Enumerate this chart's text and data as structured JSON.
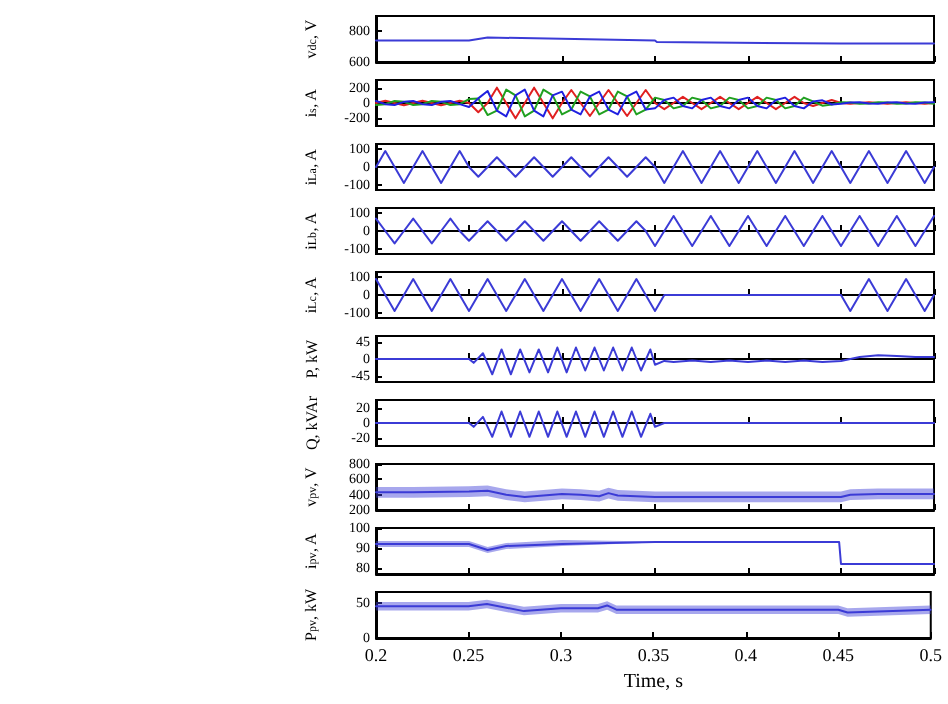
{
  "chart_data": [
    {
      "type": "line",
      "ylabel": "v$_{dc}$, V",
      "x": [
        0.2,
        0.25,
        0.26,
        0.35,
        0.351,
        0.45,
        0.5
      ],
      "series": [
        {
          "color": "#3b3bd6",
          "values": [
            740,
            740,
            760,
            740,
            730,
            720,
            720
          ]
        }
      ],
      "xlim": [
        0.2,
        0.5
      ],
      "xticks": [
        0.2,
        0.25,
        0.3,
        0.35,
        0.4,
        0.45,
        0.5
      ],
      "ylim": [
        600,
        900
      ],
      "yticks": [
        600,
        800
      ],
      "tick_labels": "y"
    },
    {
      "type": "line",
      "ylabel": "i$_{s}$, A",
      "x": [
        0.2,
        0.205,
        0.21,
        0.215,
        0.22,
        0.225,
        0.23,
        0.235,
        0.24,
        0.245,
        0.25,
        0.255,
        0.26,
        0.265,
        0.27,
        0.275,
        0.28,
        0.285,
        0.29,
        0.295,
        0.3,
        0.305,
        0.31,
        0.315,
        0.32,
        0.325,
        0.33,
        0.335,
        0.34,
        0.345,
        0.35,
        0.355,
        0.36,
        0.365,
        0.37,
        0.375,
        0.38,
        0.385,
        0.39,
        0.395,
        0.4,
        0.405,
        0.41,
        0.415,
        0.42,
        0.425,
        0.43,
        0.435,
        0.44,
        0.445,
        0.45,
        0.455,
        0.46,
        0.465,
        0.47,
        0.475,
        0.48,
        0.485,
        0.49,
        0.495,
        0.5
      ],
      "series": [
        {
          "color": "#e02020",
          "values": [
            0,
            30,
            0,
            -30,
            0,
            30,
            0,
            -30,
            0,
            30,
            0,
            -120,
            0,
            200,
            0,
            -200,
            0,
            200,
            0,
            -200,
            0,
            170,
            0,
            -170,
            0,
            170,
            0,
            -170,
            0,
            170,
            0,
            -80,
            0,
            80,
            0,
            -80,
            0,
            80,
            0,
            -80,
            0,
            80,
            0,
            -80,
            0,
            80,
            0,
            -40,
            0,
            40,
            0,
            -10,
            0,
            10,
            0,
            -10,
            0,
            10,
            0,
            -10,
            0
          ]
        },
        {
          "color": "#20a020",
          "values": [
            -26,
            -15,
            26,
            15,
            -26,
            -15,
            26,
            15,
            -26,
            -15,
            52,
            60,
            -157,
            -100,
            174,
            100,
            -174,
            -100,
            174,
            100,
            -148,
            -85,
            148,
            85,
            -148,
            -85,
            148,
            85,
            -148,
            -85,
            70,
            40,
            -70,
            -40,
            70,
            40,
            -70,
            -40,
            70,
            40,
            -70,
            -40,
            70,
            40,
            -70,
            -40,
            70,
            20,
            -35,
            -20,
            9,
            5,
            -9,
            -5,
            9,
            5,
            -9,
            -5,
            9,
            5,
            -9
          ]
        },
        {
          "color": "#2020e0",
          "values": [
            26,
            -15,
            -26,
            15,
            26,
            -15,
            -26,
            15,
            26,
            -15,
            -52,
            60,
            157,
            -100,
            -174,
            100,
            174,
            -100,
            -174,
            100,
            148,
            -85,
            -148,
            85,
            148,
            -85,
            -148,
            85,
            148,
            -85,
            -70,
            40,
            70,
            -40,
            -70,
            40,
            70,
            -40,
            -70,
            40,
            70,
            -40,
            -70,
            40,
            70,
            -40,
            -70,
            20,
            35,
            -20,
            -9,
            5,
            9,
            -5,
            -9,
            5,
            9,
            -5,
            -9,
            5,
            9
          ]
        }
      ],
      "xlim": [
        0.2,
        0.5
      ],
      "xticks": [
        0.2,
        0.25,
        0.3,
        0.35,
        0.4,
        0.45,
        0.5
      ],
      "ylim": [
        -300,
        300
      ],
      "yticks": [
        -200,
        0,
        200
      ],
      "tick_labels": "y"
    },
    {
      "type": "line",
      "ylabel": "i$_{La}$, A",
      "x": [
        0.2,
        0.205,
        0.21,
        0.215,
        0.22,
        0.225,
        0.23,
        0.235,
        0.24,
        0.245,
        0.25,
        0.255,
        0.26,
        0.265,
        0.27,
        0.275,
        0.28,
        0.285,
        0.29,
        0.295,
        0.3,
        0.305,
        0.31,
        0.315,
        0.32,
        0.325,
        0.33,
        0.335,
        0.34,
        0.345,
        0.35,
        0.355,
        0.36,
        0.365,
        0.37,
        0.375,
        0.38,
        0.385,
        0.39,
        0.395,
        0.4,
        0.405,
        0.41,
        0.415,
        0.42,
        0.425,
        0.43,
        0.435,
        0.44,
        0.445,
        0.45,
        0.455,
        0.46,
        0.465,
        0.47,
        0.475,
        0.48,
        0.485,
        0.49,
        0.495,
        0.5
      ],
      "series": [
        {
          "color": "#3b3bd6",
          "values": [
            0,
            90,
            0,
            -90,
            0,
            90,
            0,
            -90,
            0,
            90,
            0,
            -55,
            0,
            55,
            0,
            -55,
            0,
            55,
            0,
            -55,
            0,
            55,
            0,
            -55,
            0,
            55,
            0,
            -55,
            0,
            55,
            0,
            -90,
            0,
            90,
            0,
            -90,
            0,
            90,
            0,
            -90,
            0,
            90,
            0,
            -90,
            0,
            90,
            0,
            -90,
            0,
            90,
            0,
            -90,
            0,
            90,
            0,
            -90,
            0,
            90,
            0,
            -90,
            0
          ]
        }
      ],
      "xlim": [
        0.2,
        0.5
      ],
      "xticks": [
        0.2,
        0.25,
        0.3,
        0.35,
        0.4,
        0.45,
        0.5
      ],
      "ylim": [
        -130,
        130
      ],
      "yticks": [
        -100,
        0,
        100
      ],
      "tick_labels": "y"
    },
    {
      "type": "line",
      "ylabel": "i$_{Lb}$, A",
      "x": [
        0.2,
        0.205,
        0.21,
        0.215,
        0.22,
        0.225,
        0.23,
        0.235,
        0.24,
        0.245,
        0.25,
        0.255,
        0.26,
        0.265,
        0.27,
        0.275,
        0.28,
        0.285,
        0.29,
        0.295,
        0.3,
        0.305,
        0.31,
        0.315,
        0.32,
        0.325,
        0.33,
        0.335,
        0.34,
        0.345,
        0.35,
        0.355,
        0.36,
        0.365,
        0.37,
        0.375,
        0.38,
        0.385,
        0.39,
        0.395,
        0.4,
        0.405,
        0.41,
        0.415,
        0.42,
        0.425,
        0.43,
        0.435,
        0.44,
        0.445,
        0.45,
        0.455,
        0.46,
        0.465,
        0.47,
        0.475,
        0.48,
        0.485,
        0.49,
        0.495,
        0.5
      ],
      "series": [
        {
          "color": "#3b3bd6",
          "values": [
            70,
            0,
            -70,
            0,
            70,
            0,
            -70,
            0,
            70,
            0,
            -55,
            0,
            55,
            0,
            -55,
            0,
            55,
            0,
            -55,
            0,
            55,
            0,
            -55,
            0,
            55,
            0,
            -55,
            0,
            55,
            0,
            -85,
            0,
            85,
            0,
            -85,
            0,
            85,
            0,
            -85,
            0,
            85,
            0,
            -85,
            0,
            85,
            0,
            -85,
            0,
            85,
            0,
            -85,
            0,
            85,
            0,
            -85,
            0,
            85,
            0,
            -85,
            0,
            85
          ]
        }
      ],
      "xlim": [
        0.2,
        0.5
      ],
      "xticks": [
        0.2,
        0.25,
        0.3,
        0.35,
        0.4,
        0.45,
        0.5
      ],
      "ylim": [
        -130,
        130
      ],
      "yticks": [
        -100,
        0,
        100
      ],
      "tick_labels": "y"
    },
    {
      "type": "line",
      "ylabel": "i$_{Lc}$, A",
      "x": [
        0.2,
        0.205,
        0.21,
        0.215,
        0.22,
        0.225,
        0.23,
        0.235,
        0.24,
        0.245,
        0.25,
        0.255,
        0.26,
        0.265,
        0.27,
        0.275,
        0.28,
        0.285,
        0.29,
        0.295,
        0.3,
        0.305,
        0.31,
        0.315,
        0.32,
        0.325,
        0.33,
        0.335,
        0.34,
        0.345,
        0.35,
        0.355,
        0.36,
        0.365,
        0.37,
        0.375,
        0.38,
        0.385,
        0.39,
        0.395,
        0.4,
        0.405,
        0.41,
        0.415,
        0.42,
        0.425,
        0.43,
        0.435,
        0.44,
        0.445,
        0.45,
        0.455,
        0.46,
        0.465,
        0.47,
        0.475,
        0.48,
        0.485,
        0.49,
        0.495,
        0.5
      ],
      "series": [
        {
          "color": "#3b3bd6",
          "values": [
            90,
            0,
            -90,
            0,
            90,
            0,
            -90,
            0,
            90,
            0,
            -90,
            0,
            90,
            0,
            -90,
            0,
            90,
            0,
            -90,
            0,
            90,
            0,
            -90,
            0,
            90,
            0,
            -90,
            0,
            90,
            0,
            -90,
            0,
            0,
            0,
            0,
            0,
            0,
            0,
            0,
            0,
            0,
            0,
            0,
            0,
            0,
            0,
            0,
            0,
            0,
            0,
            0,
            -90,
            0,
            90,
            0,
            -90,
            0,
            90,
            0,
            -90,
            0
          ]
        }
      ],
      "xlim": [
        0.2,
        0.5
      ],
      "xticks": [
        0.2,
        0.25,
        0.3,
        0.35,
        0.4,
        0.45,
        0.5
      ],
      "ylim": [
        -130,
        130
      ],
      "yticks": [
        -100,
        0,
        100
      ],
      "tick_labels": "y"
    },
    {
      "type": "line",
      "ylabel": "P, kW",
      "x": [
        0.2,
        0.25,
        0.2525,
        0.2575,
        0.2625,
        0.2675,
        0.2725,
        0.2775,
        0.2825,
        0.2875,
        0.2925,
        0.2975,
        0.3025,
        0.3075,
        0.3125,
        0.3175,
        0.3225,
        0.3275,
        0.3325,
        0.3375,
        0.3425,
        0.3475,
        0.35,
        0.355,
        0.36,
        0.37,
        0.38,
        0.39,
        0.4,
        0.41,
        0.42,
        0.43,
        0.44,
        0.45,
        0.46,
        0.47,
        0.48,
        0.49,
        0.5
      ],
      "series": [
        {
          "color": "#3b3bd6",
          "values": [
            0,
            0,
            -10,
            15,
            -40,
            25,
            -40,
            25,
            -35,
            25,
            -35,
            30,
            -35,
            30,
            -30,
            30,
            -30,
            30,
            -30,
            30,
            -30,
            25,
            -15,
            -5,
            -8,
            -4,
            -8,
            -4,
            -8,
            -4,
            -8,
            -4,
            -8,
            -5,
            5,
            10,
            8,
            5,
            5
          ]
        }
      ],
      "xlim": [
        0.2,
        0.5
      ],
      "xticks": [
        0.2,
        0.25,
        0.3,
        0.35,
        0.4,
        0.45,
        0.5
      ],
      "ylim": [
        -60,
        60
      ],
      "yticks": [
        -45,
        0,
        45
      ],
      "tick_labels": "y"
    },
    {
      "type": "line",
      "ylabel": "Q, kVAr",
      "x": [
        0.2,
        0.25,
        0.2525,
        0.2575,
        0.2625,
        0.2675,
        0.2725,
        0.2775,
        0.2825,
        0.2875,
        0.2925,
        0.2975,
        0.3025,
        0.3075,
        0.3125,
        0.3175,
        0.3225,
        0.3275,
        0.3325,
        0.3375,
        0.3425,
        0.3475,
        0.35,
        0.355,
        0.5
      ],
      "series": [
        {
          "color": "#3b3bd6",
          "values": [
            0,
            0,
            -5,
            8,
            -18,
            15,
            -18,
            15,
            -18,
            15,
            -18,
            15,
            -18,
            15,
            -18,
            15,
            -18,
            15,
            -18,
            15,
            -18,
            12,
            -5,
            0,
            0
          ]
        }
      ],
      "xlim": [
        0.2,
        0.5
      ],
      "xticks": [
        0.2,
        0.25,
        0.3,
        0.35,
        0.4,
        0.45,
        0.5
      ],
      "ylim": [
        -30,
        30
      ],
      "yticks": [
        -20,
        0,
        20
      ],
      "tick_labels": "y"
    },
    {
      "type": "line",
      "ylabel": "v$_{pv}$, V",
      "x": [
        0.2,
        0.22,
        0.25,
        0.26,
        0.27,
        0.28,
        0.29,
        0.3,
        0.31,
        0.32,
        0.325,
        0.33,
        0.34,
        0.35,
        0.4,
        0.45,
        0.455,
        0.47,
        0.5
      ],
      "series": [
        {
          "color": "#3b3bd6",
          "values": [
            430,
            430,
            440,
            450,
            400,
            370,
            390,
            410,
            400,
            380,
            420,
            390,
            380,
            370,
            370,
            370,
            400,
            410,
            410
          ],
          "lower": [
            360,
            360,
            370,
            380,
            330,
            300,
            320,
            340,
            330,
            310,
            350,
            320,
            310,
            300,
            300,
            300,
            330,
            340,
            340
          ],
          "upper": [
            500,
            500,
            510,
            520,
            470,
            440,
            460,
            480,
            470,
            450,
            490,
            460,
            450,
            440,
            440,
            440,
            470,
            480,
            480
          ]
        }
      ],
      "xlim": [
        0.2,
        0.5
      ],
      "xticks": [
        0.2,
        0.25,
        0.3,
        0.35,
        0.4,
        0.45,
        0.5
      ],
      "ylim": [
        200,
        800
      ],
      "yticks": [
        200,
        400,
        600,
        800
      ],
      "tick_labels": "y"
    },
    {
      "type": "line",
      "ylabel": "i$_{pv}$, A",
      "x": [
        0.2,
        0.25,
        0.26,
        0.27,
        0.3,
        0.35,
        0.449,
        0.45,
        0.5
      ],
      "series": [
        {
          "color": "#3b3bd6",
          "values": [
            92,
            92,
            89,
            91,
            92,
            93,
            93,
            82,
            82
          ],
          "lower": [
            90.5,
            90.5,
            87.5,
            89.5,
            91,
            92.7,
            92.7,
            81.7,
            81.7
          ],
          "upper": [
            93.5,
            93.5,
            90.5,
            92.5,
            94,
            93.3,
            93.3,
            82.3,
            82.3
          ]
        }
      ],
      "xlim": [
        0.2,
        0.5
      ],
      "xticks": [
        0.2,
        0.25,
        0.3,
        0.35,
        0.4,
        0.45,
        0.5
      ],
      "ylim": [
        77,
        100
      ],
      "yticks": [
        80,
        90,
        100
      ],
      "tick_labels": "y"
    },
    {
      "type": "line",
      "ylabel": "P$_{pv}$, kW",
      "xlabel": "Time, s",
      "x": [
        0.2,
        0.25,
        0.26,
        0.28,
        0.3,
        0.32,
        0.325,
        0.33,
        0.35,
        0.45,
        0.455,
        0.5
      ],
      "series": [
        {
          "color": "#3b3bd6",
          "values": [
            45,
            45,
            48,
            38,
            42,
            42,
            46,
            40,
            40,
            40,
            36,
            40
          ],
          "lower": [
            39,
            39,
            42,
            32,
            36,
            36,
            40,
            34,
            34,
            34,
            30,
            34
          ],
          "upper": [
            51,
            51,
            54,
            44,
            48,
            48,
            52,
            46,
            46,
            46,
            42,
            46
          ]
        }
      ],
      "xlim": [
        0.2,
        0.5
      ],
      "xticks": [
        0.2,
        0.25,
        0.3,
        0.35,
        0.4,
        0.45,
        0.5
      ],
      "ylim": [
        0,
        65
      ],
      "yticks": [
        0,
        50
      ]
    }
  ]
}
